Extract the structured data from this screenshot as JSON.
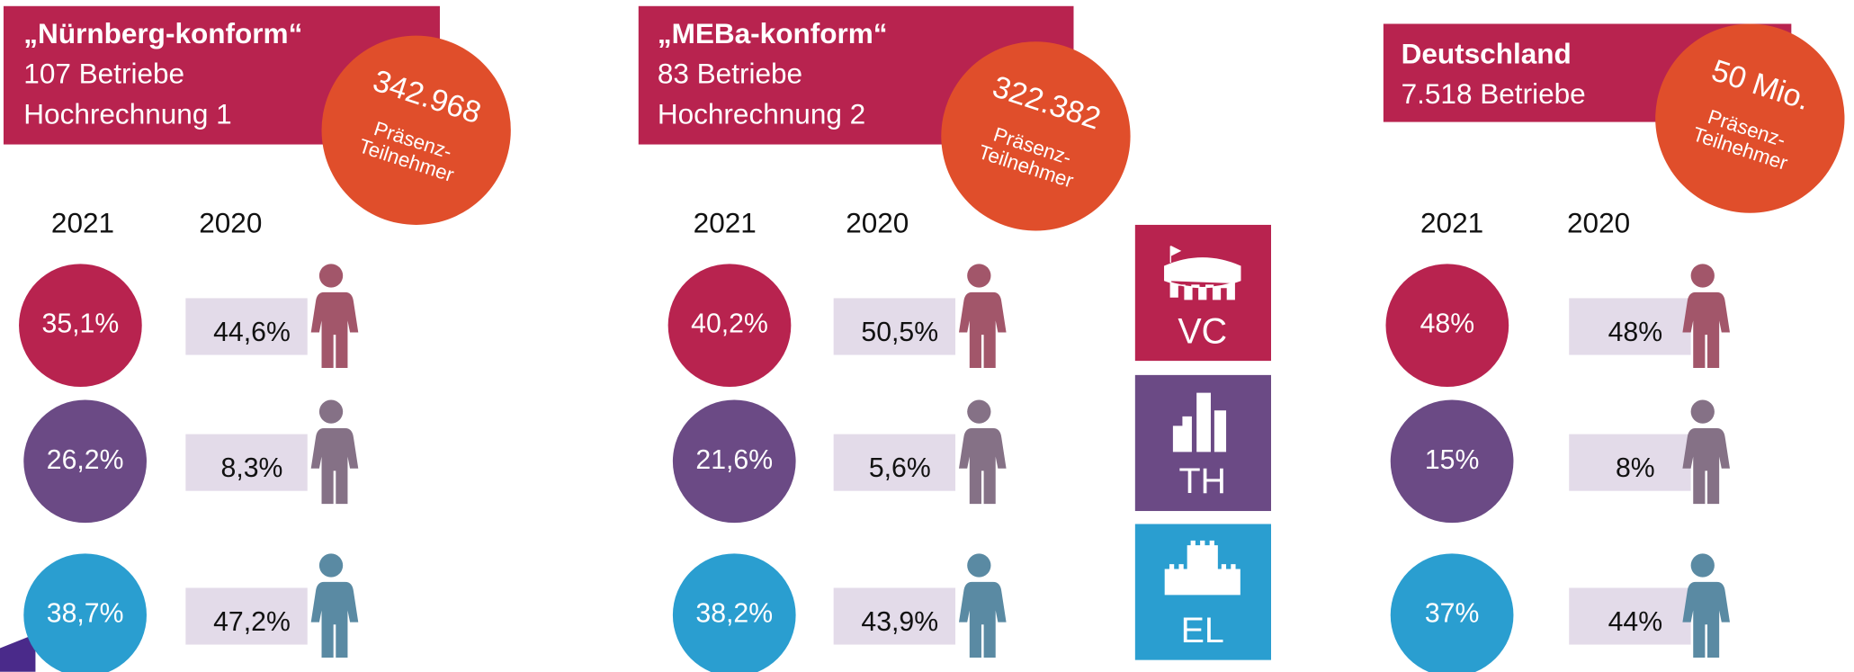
{
  "panels": [
    {
      "title": "„Nürnberg-konform“",
      "lines": [
        "107 Betriebe",
        "Hochrechnung 1"
      ],
      "badge": [
        "342.968",
        "Präsenz-",
        "Teilnehmer"
      ],
      "years": [
        "2021",
        "2020"
      ],
      "rows": [
        [
          "35,1%",
          "44,6%"
        ],
        [
          "26,2%",
          "8,3%"
        ],
        [
          "38,7%",
          "47,2%"
        ]
      ]
    },
    {
      "title": "„MEBa-konform“",
      "lines": [
        "83 Betriebe",
        "Hochrechnung 2"
      ],
      "badge": [
        "322.382",
        "Präsenz-",
        "Teilnehmer"
      ],
      "years": [
        "2021",
        "2020"
      ],
      "rows": [
        [
          "40,2%",
          "50,5%"
        ],
        [
          "21,6%",
          "5,6%"
        ],
        [
          "38,2%",
          "43,9%"
        ]
      ]
    },
    {
      "title": "Deutschland",
      "lines": [
        "7.518 Betriebe"
      ],
      "badge": [
        "50 Mio.",
        "Präsenz-",
        "Teilnehmer"
      ],
      "years": [
        "2021",
        "2020"
      ],
      "rows": [
        [
          "48%",
          "48%"
        ],
        [
          "15%",
          "8%"
        ],
        [
          "37%",
          "44%"
        ]
      ]
    }
  ],
  "icons": [
    "VC",
    "TH",
    "EL"
  ]
}
